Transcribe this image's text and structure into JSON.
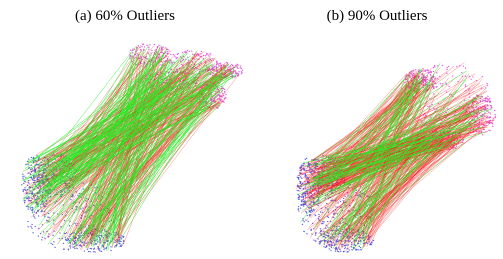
{
  "captions": [
    "(a) 60% Outliers",
    "(b) 90% Outliers"
  ]
}
